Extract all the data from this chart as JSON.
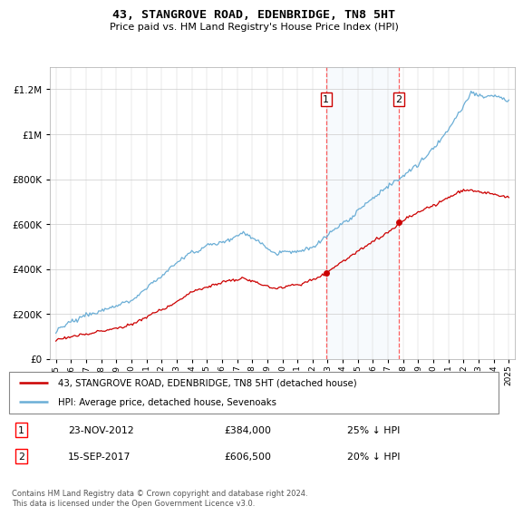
{
  "title": "43, STANGROVE ROAD, EDENBRIDGE, TN8 5HT",
  "subtitle": "Price paid vs. HM Land Registry's House Price Index (HPI)",
  "legend_line1": "43, STANGROVE ROAD, EDENBRIDGE, TN8 5HT (detached house)",
  "legend_line2": "HPI: Average price, detached house, Sevenoaks",
  "annotation1_label": "1",
  "annotation1_date": "23-NOV-2012",
  "annotation1_price": "£384,000",
  "annotation1_hpi": "25% ↓ HPI",
  "annotation2_label": "2",
  "annotation2_date": "15-SEP-2017",
  "annotation2_price": "£606,500",
  "annotation2_hpi": "20% ↓ HPI",
  "footnote": "Contains HM Land Registry data © Crown copyright and database right 2024.\nThis data is licensed under the Open Government Licence v3.0.",
  "sale1_year": 2012.9,
  "sale1_value": 384000,
  "sale2_year": 2017.71,
  "sale2_value": 606500,
  "hpi_color": "#6baed6",
  "red_color": "#cc0000",
  "shade_color": "#d6e8f5",
  "grid_color": "#cccccc",
  "bg_color": "#ffffff"
}
